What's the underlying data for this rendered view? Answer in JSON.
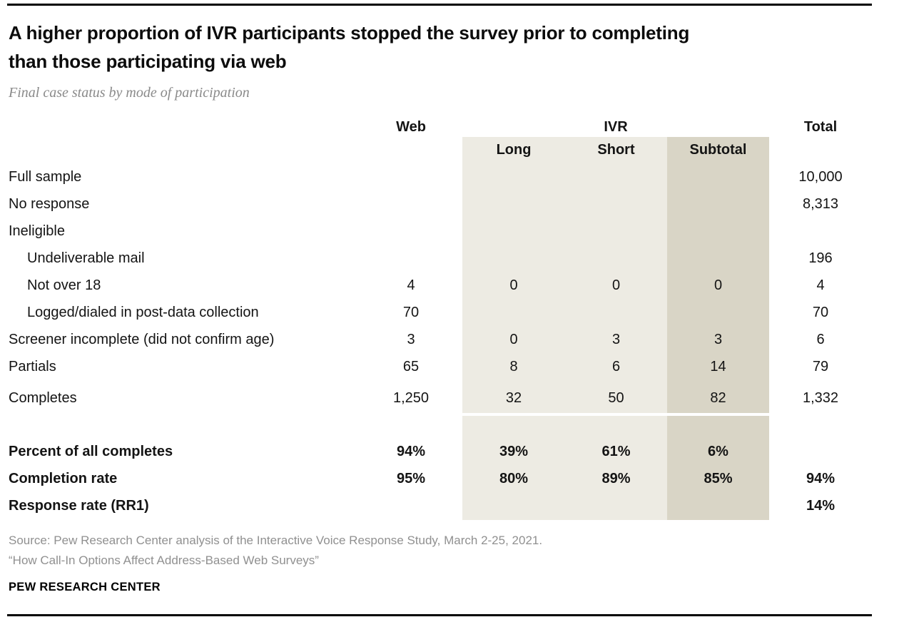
{
  "header": {
    "title_line1": "A higher proportion of IVR participants stopped the survey prior to completing",
    "title_line2": "than those participating via web",
    "subtitle": "Final case status by mode of participation"
  },
  "colors": {
    "ivr_columns_shade": "#edebe3",
    "subtotal_column_shade": "#d9d5c6",
    "rule": "#000000",
    "subtitle_gray": "#8a8a8a",
    "source_gray": "#909090"
  },
  "chart_data": {
    "type": "table",
    "title": "A higher proportion of IVR participants stopped the survey prior to completing than those participating via web",
    "subtitle": "Final case status by mode of participation",
    "group_headers": {
      "web": "Web",
      "ivr": "IVR",
      "total": "Total"
    },
    "sub_headers": {
      "long": "Long",
      "short": "Short",
      "subtotal": "Subtotal"
    },
    "columns": [
      "",
      "Web",
      "IVR Long",
      "IVR Short",
      "IVR Subtotal",
      "Total"
    ],
    "rows": [
      {
        "label": "Full sample",
        "web": "",
        "long": "",
        "short": "",
        "subtotal": "",
        "total": "10,000"
      },
      {
        "label": "No response",
        "web": "",
        "long": "",
        "short": "",
        "subtotal": "",
        "total": "8,313"
      },
      {
        "label": "Ineligible",
        "web": "",
        "long": "",
        "short": "",
        "subtotal": "",
        "total": ""
      },
      {
        "label": "Undeliverable mail",
        "web": "",
        "long": "",
        "short": "",
        "subtotal": "",
        "total": "196"
      },
      {
        "label": "Not over 18",
        "web": "4",
        "long": "0",
        "short": "0",
        "subtotal": "0",
        "total": "4"
      },
      {
        "label": "Logged/dialed in post-data collection",
        "web": "70",
        "long": "",
        "short": "",
        "subtotal": "",
        "total": "70"
      },
      {
        "label": "Screener incomplete (did not confirm age)",
        "web": "3",
        "long": "0",
        "short": "3",
        "subtotal": "3",
        "total": "6"
      },
      {
        "label": "Partials",
        "web": "65",
        "long": "8",
        "short": "6",
        "subtotal": "14",
        "total": "79"
      },
      {
        "label": "Completes",
        "web": "1,250",
        "long": "32",
        "short": "50",
        "subtotal": "82",
        "total": "1,332"
      },
      {
        "label": "Percent of all completes",
        "web": "94%",
        "long": "39%",
        "short": "61%",
        "subtotal": "6%",
        "total": ""
      },
      {
        "label": "Completion rate",
        "web": "95%",
        "long": "80%",
        "short": "89%",
        "subtotal": "85%",
        "total": "94%"
      },
      {
        "label": "Response rate (RR1)",
        "web": "",
        "long": "",
        "short": "",
        "subtotal": "",
        "total": "14%"
      }
    ]
  },
  "footer": {
    "source_line1": "Source: Pew Research Center analysis of the Interactive Voice Response Study, March 2-25, 2021.",
    "source_line2": "“How Call-In Options Affect Address-Based Web Surveys”",
    "brand": "PEW RESEARCH CENTER"
  }
}
